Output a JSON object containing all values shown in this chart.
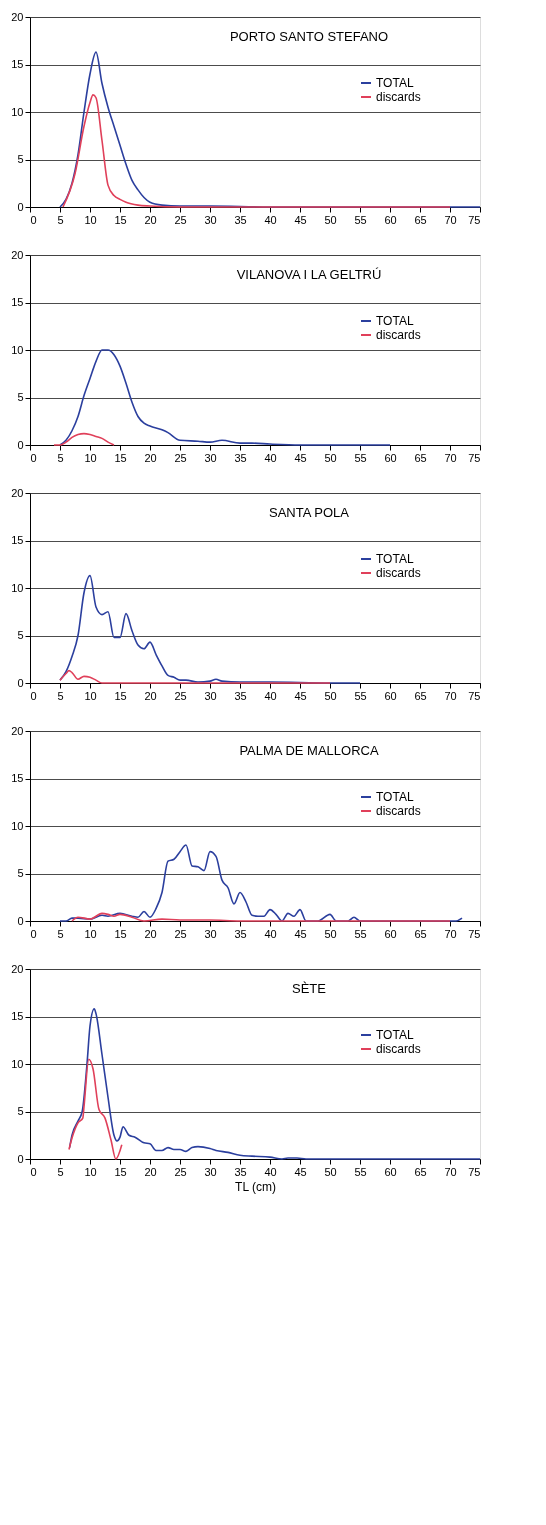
{
  "chart_data": [
    {
      "type": "line",
      "title": "PORTO SANTO STEFANO",
      "xlim": [
        0,
        75
      ],
      "xticks": [
        0,
        5,
        10,
        15,
        20,
        25,
        30,
        35,
        40,
        45,
        50,
        55,
        60,
        65,
        70,
        75
      ],
      "ylim": [
        0,
        20
      ],
      "yticks": [
        0,
        5,
        10,
        15,
        20
      ],
      "grid": "y",
      "legend": "right",
      "marker": "none",
      "line_style": "solid",
      "series": [
        {
          "name": "TOTAL",
          "color": "#2b3f9e",
          "x": [
            5,
            6,
            7,
            8,
            9,
            10,
            11,
            12,
            13,
            14,
            15,
            16,
            17,
            18,
            19,
            20,
            22,
            25,
            30,
            40,
            45,
            50,
            75
          ],
          "values": [
            0,
            0.8,
            2.5,
            5.5,
            10,
            14,
            16.3,
            13,
            10.5,
            8.5,
            6.5,
            4.5,
            2.8,
            1.8,
            1,
            0.5,
            0.2,
            0.1,
            0.1,
            0,
            0,
            0,
            0
          ]
        },
        {
          "name": "discards",
          "color": "#e0405a",
          "x": [
            5.5,
            7.5,
            9,
            10,
            10.5,
            11,
            12,
            13,
            14,
            15,
            16,
            18,
            20,
            25,
            70
          ],
          "values": [
            0,
            3.5,
            8.5,
            11,
            11.8,
            11.5,
            7,
            2.3,
            1.2,
            0.8,
            0.5,
            0.2,
            0.1,
            0,
            0
          ]
        }
      ]
    },
    {
      "type": "line",
      "title": "VILANOVA I LA GELTRÚ",
      "xlim": [
        0,
        75
      ],
      "xticks": [
        0,
        5,
        10,
        15,
        20,
        25,
        30,
        35,
        40,
        45,
        50,
        55,
        60,
        65,
        70,
        75
      ],
      "ylim": [
        0,
        20
      ],
      "yticks": [
        0,
        5,
        10,
        15,
        20
      ],
      "grid": "y",
      "legend": "right",
      "marker": "none",
      "line_style": "solid",
      "series": [
        {
          "name": "TOTAL",
          "color": "#2b3f9e",
          "x": [
            5,
            6,
            7,
            8,
            9,
            10,
            11,
            12,
            13,
            14,
            15,
            16,
            17,
            18,
            19,
            20,
            22,
            23,
            25,
            28,
            30,
            32,
            35,
            37,
            40,
            45,
            50,
            60
          ],
          "values": [
            0,
            0.5,
            1.5,
            3,
            5.2,
            7,
            8.8,
            10,
            10,
            9.5,
            8.3,
            6.5,
            4.5,
            3,
            2.3,
            2,
            1.6,
            1.3,
            0.5,
            0.4,
            0.3,
            0.5,
            0.2,
            0.2,
            0.1,
            0,
            0,
            0
          ]
        },
        {
          "name": "discards",
          "color": "#e0405a",
          "x": [
            4,
            5,
            6,
            7,
            8,
            9,
            10,
            11,
            12,
            13,
            14
          ],
          "values": [
            0,
            0,
            0.3,
            0.8,
            1.1,
            1.2,
            1.1,
            0.9,
            0.7,
            0.3,
            0
          ]
        }
      ]
    },
    {
      "type": "line",
      "title": "SANTA POLA",
      "xlim": [
        0,
        75
      ],
      "xticks": [
        0,
        5,
        10,
        15,
        20,
        25,
        30,
        35,
        40,
        45,
        50,
        55,
        60,
        65,
        70,
        75
      ],
      "ylim": [
        0,
        20
      ],
      "yticks": [
        0,
        5,
        10,
        15,
        20
      ],
      "grid": "y",
      "legend": "right",
      "marker": "none",
      "line_style": "solid",
      "series": [
        {
          "name": "TOTAL",
          "color": "#2b3f9e",
          "x": [
            5,
            6,
            7,
            8,
            9,
            10,
            11,
            12,
            13,
            14,
            15,
            16,
            17,
            18,
            19,
            20,
            21,
            22,
            23,
            24,
            25,
            26,
            28,
            30,
            31,
            32,
            35,
            40,
            50,
            55
          ],
          "values": [
            0.3,
            1.2,
            2.8,
            5,
            9.5,
            11.3,
            8,
            7.2,
            7.5,
            4.8,
            4.8,
            7.3,
            5.5,
            4,
            3.6,
            4.3,
            3,
            1.8,
            0.8,
            0.6,
            0.3,
            0.3,
            0.1,
            0.2,
            0.4,
            0.2,
            0.1,
            0.1,
            0,
            0
          ]
        },
        {
          "name": "discards",
          "color": "#e0405a",
          "x": [
            5,
            6,
            6.5,
            7,
            8,
            9,
            10,
            11,
            12,
            15,
            50
          ],
          "values": [
            0.3,
            1,
            1.3,
            1.1,
            0.4,
            0.7,
            0.6,
            0.3,
            0,
            0,
            0
          ]
        }
      ]
    },
    {
      "type": "line",
      "title": "PALMA DE MALLORCA",
      "xlim": [
        0,
        75
      ],
      "xticks": [
        0,
        5,
        10,
        15,
        20,
        25,
        30,
        35,
        40,
        45,
        50,
        55,
        60,
        65,
        70,
        75
      ],
      "ylim": [
        0,
        20
      ],
      "yticks": [
        0,
        5,
        10,
        15,
        20
      ],
      "grid": "y",
      "legend": "right",
      "marker": "none",
      "line_style": "solid",
      "series": [
        {
          "name": "TOTAL",
          "color": "#2b3f9e",
          "x": [
            5,
            6,
            7,
            8,
            10,
            12,
            13,
            15,
            17,
            18,
            19,
            20,
            21,
            22,
            23,
            24,
            25,
            26,
            27,
            28,
            29,
            30,
            31,
            32,
            33,
            34,
            35,
            36,
            37,
            38,
            39,
            40,
            41,
            42,
            43,
            44,
            45,
            46,
            48,
            50,
            51,
            53,
            54,
            55,
            60,
            65,
            70,
            71,
            72
          ],
          "values": [
            0,
            0,
            0.3,
            0.3,
            0.2,
            0.6,
            0.5,
            0.8,
            0.5,
            0.4,
            1,
            0.4,
            1.3,
            3,
            6.3,
            6.5,
            7.3,
            8,
            5.8,
            5.7,
            5.3,
            7.3,
            6.8,
            4.3,
            3.5,
            1.8,
            3,
            2,
            0.6,
            0.5,
            0.5,
            1.2,
            0.7,
            0,
            0.8,
            0.5,
            1.2,
            0,
            0,
            0.7,
            0,
            0,
            0.4,
            0,
            0,
            0,
            0,
            0,
            0.3
          ]
        },
        {
          "name": "discards",
          "color": "#e0405a",
          "x": [
            7,
            8,
            10,
            12,
            13,
            14,
            15,
            17,
            19,
            22,
            25,
            30,
            35,
            70
          ],
          "values": [
            0,
            0.4,
            0.2,
            0.8,
            0.7,
            0.5,
            0.7,
            0.4,
            0,
            0.2,
            0.1,
            0.1,
            0,
            0
          ]
        }
      ]
    },
    {
      "type": "line",
      "title": "SÈTE",
      "xlabel": "TL (cm)",
      "xlim": [
        0,
        75
      ],
      "xticks": [
        0,
        5,
        10,
        15,
        20,
        25,
        30,
        35,
        40,
        45,
        50,
        55,
        60,
        65,
        70,
        75
      ],
      "ylim": [
        0,
        20
      ],
      "yticks": [
        0,
        5,
        10,
        15,
        20
      ],
      "grid": "y",
      "legend": "right",
      "marker": "none",
      "line_style": "solid",
      "series": [
        {
          "name": "TOTAL",
          "color": "#2b3f9e",
          "x": [
            6.6,
            7,
            8,
            8.7,
            9.5,
            10,
            10.7,
            11,
            12,
            13,
            14,
            14.5,
            15,
            15.5,
            16.5,
            17.5,
            19,
            20,
            21,
            22,
            23,
            24,
            25,
            26,
            27,
            28,
            30,
            31,
            33,
            35,
            37,
            40,
            42,
            43,
            44.5,
            46,
            50,
            75
          ],
          "values": [
            1.2,
            2.5,
            4,
            5,
            10,
            14,
            15.8,
            15.3,
            11,
            6.5,
            2.5,
            1.9,
            2.3,
            3.4,
            2.5,
            2.3,
            1.7,
            1.6,
            0.9,
            0.9,
            1.2,
            1,
            1,
            0.8,
            1.2,
            1.3,
            1.1,
            0.9,
            0.7,
            0.4,
            0.3,
            0.2,
            0,
            0.1,
            0.1,
            0,
            0,
            0
          ]
        },
        {
          "name": "discards",
          "color": "#e0405a",
          "x": [
            6.5,
            7,
            8,
            8.8,
            9,
            9.8,
            10.5,
            11.5,
            12.5,
            13.5,
            14.3,
            15.3
          ],
          "values": [
            1,
            2.2,
            3.8,
            4.3,
            5.5,
            10.5,
            9.5,
            5.2,
            4.3,
            2,
            0,
            1.5
          ]
        }
      ]
    }
  ]
}
